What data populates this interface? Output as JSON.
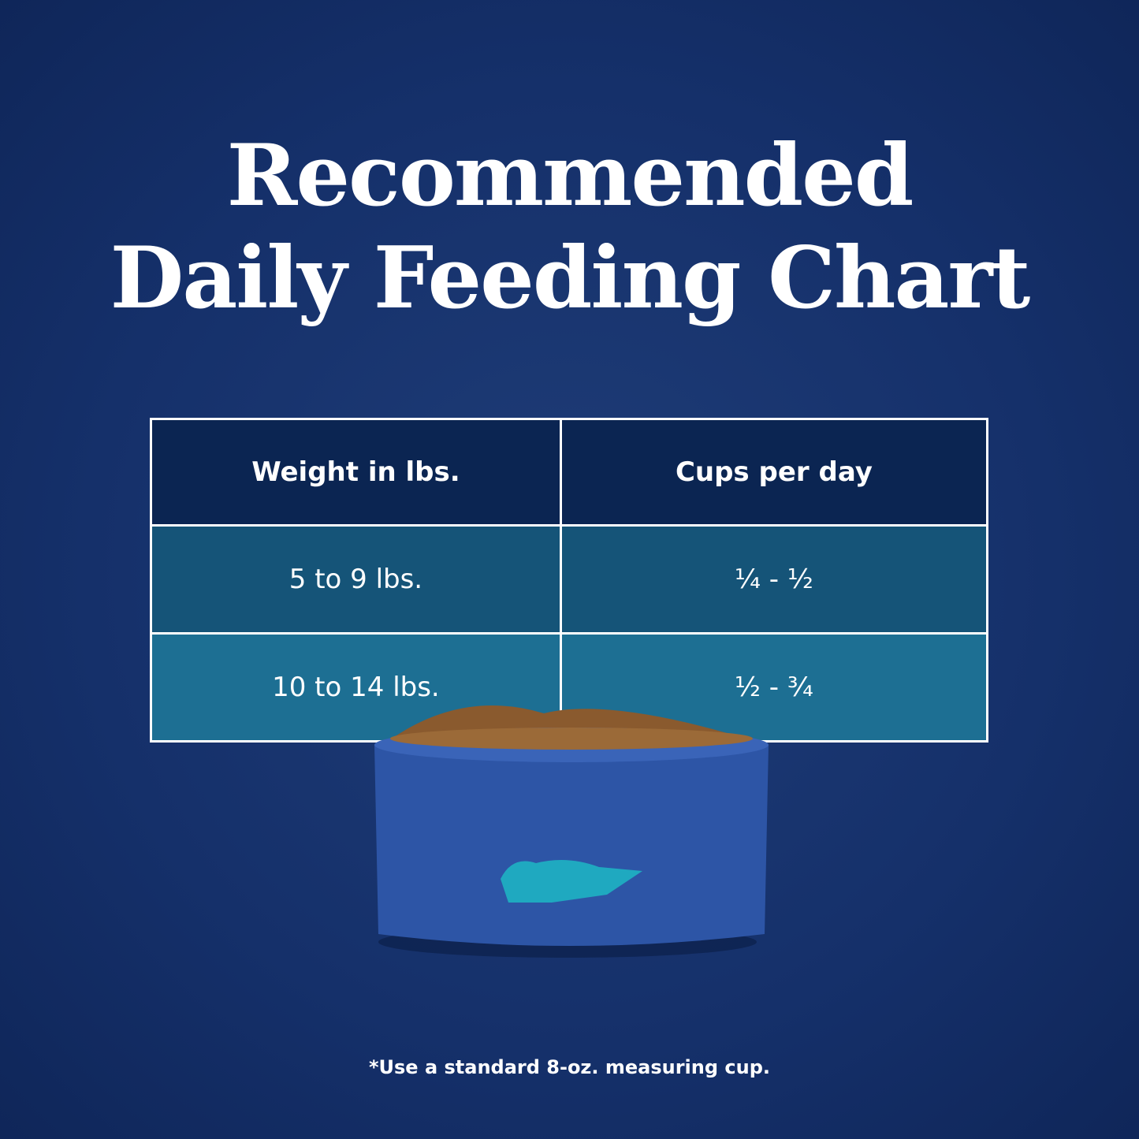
{
  "header": {
    "title_line1": "Recommended",
    "title_line2": "Daily Feeding Chart"
  },
  "table": {
    "header": [
      "Weight in lbs.",
      "Cups per day"
    ],
    "rows": [
      [
        "5 to 9 lbs.",
        "¼ - ½"
      ],
      [
        "10 to 14 lbs.",
        "½ - ¾"
      ]
    ]
  },
  "footnote": "*Use a standard 8-oz. measuring cup."
}
